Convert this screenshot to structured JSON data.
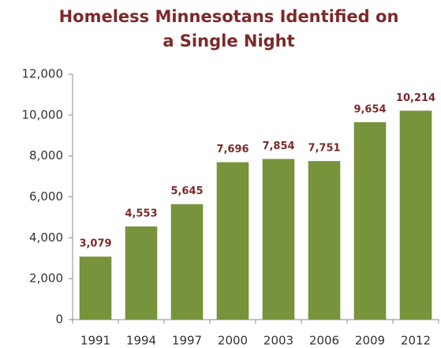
{
  "chart_data": {
    "type": "bar",
    "title": "Homeless Minnesotans Identified on a Single Night",
    "categories": [
      "1991",
      "1994",
      "1997",
      "2000",
      "2003",
      "2006",
      "2009",
      "2012"
    ],
    "values": [
      3079,
      4553,
      5645,
      7696,
      7854,
      7751,
      9654,
      10214
    ],
    "value_labels": [
      "3,079",
      "4,553",
      "5,645",
      "7,696",
      "7,854",
      "7,751",
      "9,654",
      "10,214"
    ],
    "color": "#77933c",
    "ylim": [
      0,
      12000
    ],
    "yticks": [
      0,
      {
        "value": 2000,
        "label": "2,000"
      },
      {
        "value": 4000,
        "label": "4,000"
      },
      {
        "value": 6000,
        "label": "6,000"
      },
      {
        "value": 8000,
        "label": "8,000"
      },
      {
        "value": 10000,
        "label": "10,000"
      },
      {
        "value": 12000,
        "label": "12,000"
      }
    ],
    "grid": false
  }
}
